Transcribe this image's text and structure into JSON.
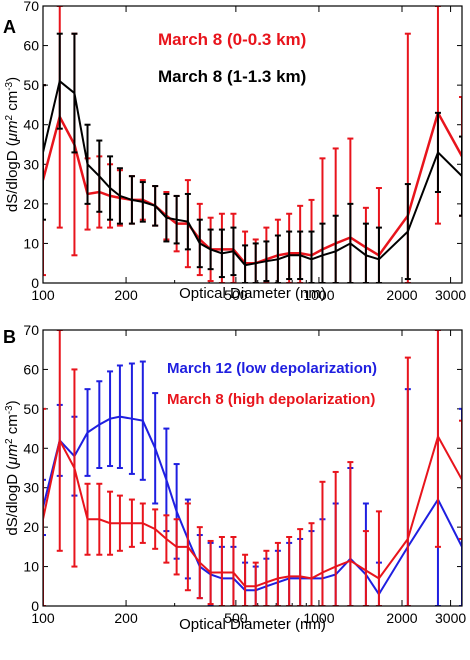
{
  "chart_data": [
    {
      "panel": "A",
      "type": "line",
      "xlabel": "Optical Diameter (nm)",
      "ylabel_main": "dS/dlogD (",
      "ylabel_unit1": "μm",
      "ylabel_unit2": "cm",
      "ylabel_close": ")",
      "x_scale": "log",
      "xlim": [
        100,
        3300
      ],
      "ylim": [
        0,
        70
      ],
      "yticks": [
        0,
        10,
        20,
        30,
        40,
        50,
        60,
        70
      ],
      "xticks": [
        {
          "value": 100,
          "label": "100"
        },
        {
          "value": 200,
          "label": "200"
        },
        {
          "value": 500,
          "label": "500"
        },
        {
          "value": 1000,
          "label": "1000"
        },
        {
          "value": 2000,
          "label": "2000"
        },
        {
          "value": 3000,
          "label": "3000"
        }
      ],
      "legend_position": "top-right",
      "series": [
        {
          "name": "March 8 (0-0.3 km)",
          "color": "#e8141c",
          "x": [
            100,
            115,
            130,
            145,
            160,
            175,
            190,
            210,
            230,
            255,
            280,
            305,
            335,
            370,
            405,
            445,
            490,
            540,
            590,
            645,
            710,
            780,
            855,
            940,
            1030,
            1150,
            1300,
            1480,
            1650,
            2100,
            2700,
            3300
          ],
          "y": [
            26,
            42,
            35,
            22.5,
            23,
            22,
            21.5,
            21,
            21,
            19.5,
            17,
            15,
            15,
            11,
            8.5,
            8.5,
            8.5,
            5,
            5,
            6,
            7,
            7.5,
            7.5,
            7,
            8.5,
            10,
            11.5,
            9,
            7,
            17,
            43,
            32
          ],
          "err": [
            24,
            28,
            28,
            9,
            9,
            8,
            7,
            6,
            5,
            5,
            6,
            7,
            11,
            9,
            8,
            9,
            9,
            8,
            6,
            8,
            9,
            10,
            12,
            14,
            23,
            24,
            25,
            10,
            17,
            46,
            28,
            15
          ]
        },
        {
          "name": "March 8 (1-1.3 km)",
          "color": "#000000",
          "x": [
            100,
            115,
            130,
            145,
            160,
            175,
            190,
            210,
            230,
            255,
            280,
            305,
            335,
            370,
            405,
            445,
            490,
            540,
            590,
            645,
            710,
            780,
            855,
            940,
            1030,
            1150,
            1300,
            1480,
            1650,
            2100,
            2700,
            3300
          ],
          "y": [
            33,
            51,
            48,
            30,
            27,
            24,
            22,
            21,
            20.5,
            19.5,
            16.5,
            16,
            15.5,
            10,
            8.5,
            7.5,
            8,
            4.5,
            5,
            5.5,
            6,
            7,
            7,
            6,
            7,
            8,
            10,
            7,
            6,
            13,
            33,
            27
          ],
          "err": [
            17,
            12,
            15,
            10,
            9,
            8,
            7,
            6,
            5,
            5,
            6,
            6,
            7,
            6,
            5,
            6,
            6,
            5,
            5,
            5,
            6,
            6,
            6,
            7,
            8,
            9,
            10,
            8,
            8,
            12,
            10,
            10
          ]
        }
      ]
    },
    {
      "panel": "B",
      "type": "line",
      "xlabel": "Optical Diameter (nm)",
      "ylabel_main": "dS/dlogD (",
      "ylabel_unit1": "μm",
      "ylabel_unit2": "cm",
      "ylabel_close": ")",
      "x_scale": "log",
      "xlim": [
        100,
        3300
      ],
      "ylim": [
        0,
        70
      ],
      "yticks": [
        0,
        10,
        20,
        30,
        40,
        50,
        60,
        70
      ],
      "xticks": [
        {
          "value": 100,
          "label": "100"
        },
        {
          "value": 200,
          "label": "200"
        },
        {
          "value": 500,
          "label": "500"
        },
        {
          "value": 1000,
          "label": "1000"
        },
        {
          "value": 2000,
          "label": "2000"
        },
        {
          "value": 3000,
          "label": "3000"
        }
      ],
      "legend_position": "top-right",
      "series": [
        {
          "name": "March 12 (low depolarization)",
          "color": "#1f1fe0",
          "x": [
            100,
            115,
            130,
            145,
            160,
            175,
            190,
            210,
            230,
            255,
            280,
            305,
            335,
            370,
            405,
            445,
            490,
            540,
            590,
            645,
            710,
            780,
            855,
            940,
            1030,
            1150,
            1300,
            1480,
            1650,
            2100,
            2700,
            3300
          ],
          "y": [
            25,
            42,
            38,
            44,
            46,
            47.5,
            48,
            47.5,
            47,
            40,
            32,
            24,
            17,
            10,
            8,
            7,
            7,
            4,
            4,
            5,
            6,
            7,
            7,
            7,
            7,
            8,
            12,
            8,
            3,
            15,
            27,
            15
          ],
          "err": [
            7,
            9,
            10,
            11,
            11,
            12,
            13,
            14,
            15,
            14,
            13,
            12,
            10,
            8,
            8,
            8,
            8,
            7,
            6,
            7,
            8,
            9,
            10,
            12,
            15,
            18,
            23,
            18,
            8,
            40,
            55,
            35
          ]
        },
        {
          "name": "March 8 (high depolarization)",
          "color": "#e8141c",
          "x": [
            100,
            115,
            130,
            145,
            160,
            175,
            190,
            210,
            230,
            255,
            280,
            305,
            335,
            370,
            405,
            445,
            490,
            540,
            590,
            645,
            710,
            780,
            855,
            940,
            1030,
            1150,
            1300,
            1480,
            1650,
            2100,
            2700,
            3300
          ],
          "y": [
            22,
            42,
            35,
            22,
            22,
            21,
            21,
            21,
            21,
            19.5,
            17,
            15,
            15,
            11,
            8.5,
            8.5,
            8.5,
            5,
            5,
            6,
            7,
            7.5,
            7.5,
            7,
            8.5,
            10,
            11.5,
            9,
            7,
            17,
            43,
            32
          ],
          "err": [
            28,
            28,
            25,
            9,
            9,
            8,
            7,
            6,
            5,
            5,
            6,
            7,
            11,
            9,
            8,
            9,
            9,
            8,
            6,
            8,
            9,
            10,
            12,
            14,
            23,
            24,
            25,
            10,
            17,
            46,
            28,
            15
          ]
        }
      ]
    }
  ]
}
